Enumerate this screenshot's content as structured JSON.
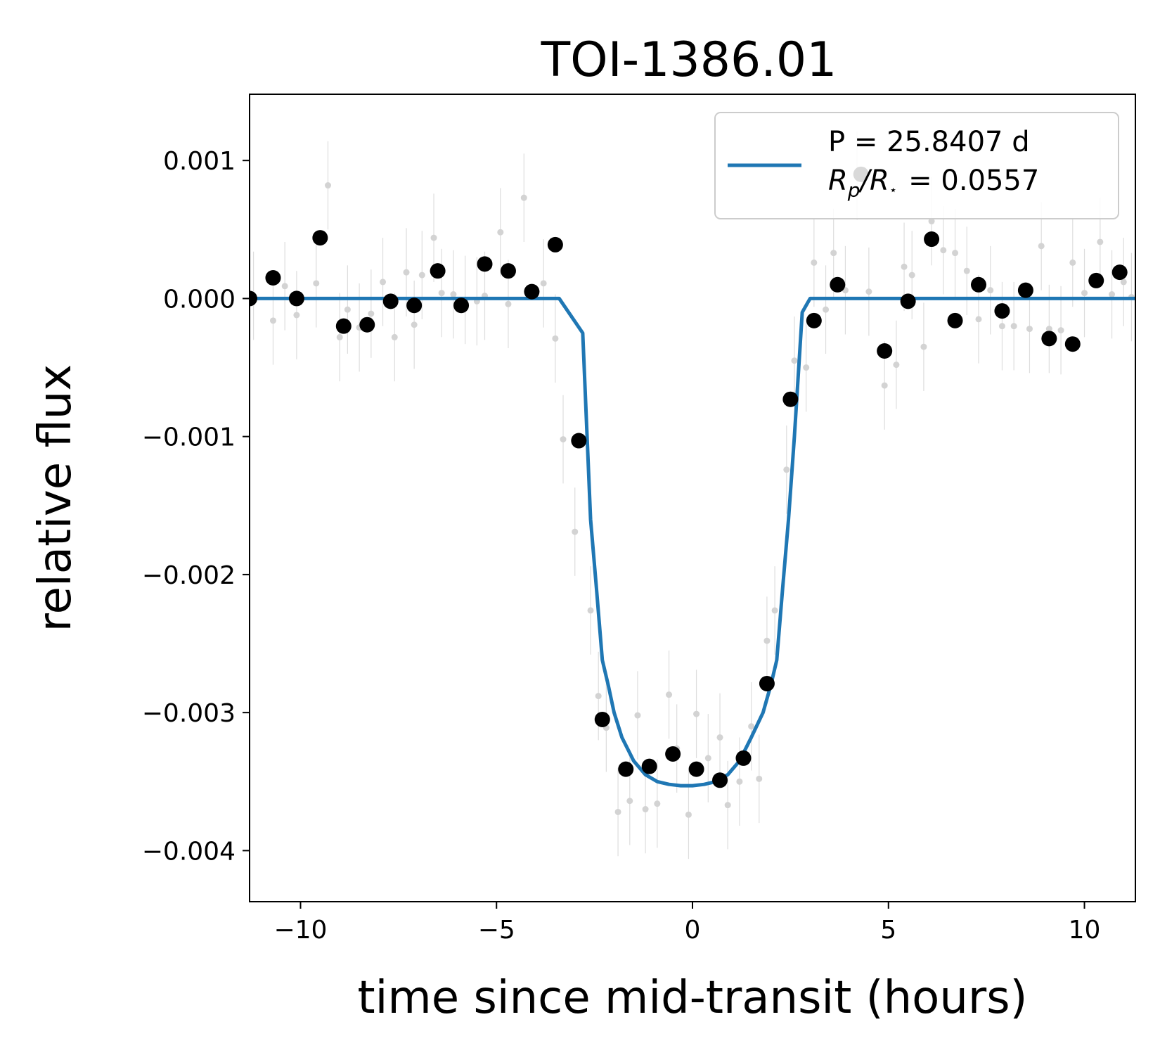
{
  "chart_data": {
    "type": "scatter",
    "title": "TOI-1386.01",
    "xlabel": "time since mid-transit (hours)",
    "ylabel": "relative flux",
    "xlim": [
      -11.3,
      11.3
    ],
    "ylim": [
      -0.00437,
      0.00148
    ],
    "x_ticks": [
      {
        "value": -10,
        "label": "−10"
      },
      {
        "value": -5,
        "label": "−5"
      },
      {
        "value": 0,
        "label": "0"
      },
      {
        "value": 5,
        "label": "5"
      },
      {
        "value": 10,
        "label": "10"
      }
    ],
    "y_ticks": [
      {
        "value": 0.001,
        "label": "0.001"
      },
      {
        "value": 0.0,
        "label": "0.000"
      },
      {
        "value": -0.001,
        "label": "−0.001"
      },
      {
        "value": -0.002,
        "label": "−0.002"
      },
      {
        "value": -0.003,
        "label": "−0.003"
      },
      {
        "value": -0.004,
        "label": "−0.004"
      }
    ],
    "legend": {
      "placement": "top-right",
      "line1": "P = 25.8407 d",
      "line2_symbol": "R",
      "line2_sub": "p",
      "line2_slash": "/R",
      "line2_star": "⋆",
      "line2_value": "= 0.0557"
    },
    "colors": {
      "model": "#1f77b4",
      "binned": "#000000",
      "raw": "#d3d3d3",
      "errorbar": "#dddddd"
    },
    "raw_points": {
      "name": "raw",
      "err": 0.00032,
      "x": [
        -11.2,
        -10.7,
        -10.4,
        -10.1,
        -9.6,
        -9.3,
        -9.0,
        -8.8,
        -8.5,
        -8.2,
        -7.9,
        -7.6,
        -7.3,
        -7.1,
        -6.9,
        -6.6,
        -6.4,
        -6.1,
        -5.8,
        -5.5,
        -5.3,
        -4.9,
        -4.7,
        -4.3,
        -3.8,
        -3.5,
        -3.3,
        -3.0,
        -2.6,
        -2.4,
        -2.2,
        -1.9,
        -1.6,
        -1.4,
        -1.2,
        -0.9,
        -0.6,
        -0.4,
        -0.1,
        0.1,
        0.4,
        0.7,
        0.9,
        1.2,
        1.5,
        1.7,
        1.9,
        2.1,
        2.4,
        2.6,
        2.9,
        3.1,
        3.4,
        3.6,
        3.9,
        4.2,
        4.5,
        4.9,
        5.2,
        5.4,
        5.6,
        5.9,
        6.1,
        6.4,
        6.7,
        7.0,
        7.3,
        7.6,
        7.9,
        8.2,
        8.6,
        8.9,
        9.1,
        9.4,
        9.7,
        10.0,
        10.4,
        10.7,
        11.0,
        11.2
      ],
      "y": [
        2e-05,
        -0.00016,
        9e-05,
        -0.00012,
        0.00011,
        0.00082,
        -0.00028,
        -8e-05,
        -0.00021,
        -0.00011,
        0.00012,
        -0.00028,
        0.00019,
        -0.00019,
        0.00017,
        0.00044,
        4e-05,
        3e-05,
        -1e-05,
        -2e-05,
        2e-05,
        0.00048,
        -4e-05,
        0.00073,
        0.00011,
        -0.00029,
        -0.00102,
        -0.00169,
        -0.00226,
        -0.00288,
        -0.00311,
        -0.00372,
        -0.00364,
        -0.00302,
        -0.0037,
        -0.00366,
        -0.00287,
        -0.00326,
        -0.00374,
        -0.00301,
        -0.00333,
        -0.00318,
        -0.00367,
        -0.0035,
        -0.0031,
        -0.00348,
        -0.00248,
        -0.00226,
        -0.00124,
        -0.00045,
        -0.0005,
        0.00026,
        -8e-05,
        0.00033,
        6e-05,
        0.00089,
        5e-05,
        -0.00063,
        -0.00048,
        0.00023,
        0.00017,
        -0.00035,
        0.00056,
        0.00035,
        0.00033,
        0.0002,
        -0.00015,
        6e-05,
        -0.0002,
        -0.0002,
        -0.00022,
        0.00038,
        -0.00022,
        -0.00023,
        0.00026,
        4e-05,
        0.00041,
        3e-05,
        0.00012,
        1e-05
      ]
    },
    "binned_points": {
      "name": "binned",
      "x": [
        -11.3,
        -10.7,
        -10.1,
        -9.5,
        -8.9,
        -8.3,
        -7.7,
        -7.1,
        -6.5,
        -5.9,
        -5.3,
        -4.7,
        -4.1,
        -3.5,
        -2.9,
        -2.3,
        -1.7,
        -1.1,
        -0.5,
        0.1,
        0.7,
        1.3,
        1.9,
        2.5,
        3.1,
        3.7,
        4.3,
        4.9,
        5.5,
        6.1,
        6.7,
        7.3,
        7.9,
        8.5,
        9.1,
        9.7,
        10.3,
        10.9
      ],
      "y": [
        0.0,
        0.00015,
        0.0,
        0.00044,
        -0.0002,
        -0.00019,
        -2e-05,
        -5e-05,
        0.0002,
        -5e-05,
        0.00025,
        0.0002,
        5e-05,
        0.00039,
        -0.00103,
        -0.00305,
        -0.00341,
        -0.00339,
        -0.0033,
        -0.00341,
        -0.00349,
        -0.00333,
        -0.00279,
        -0.00073,
        -0.00016,
        0.0001,
        0.0009,
        -0.00038,
        -2e-05,
        0.00043,
        -0.00016,
        0.0001,
        -9e-05,
        6e-05,
        -0.00029,
        -0.00033,
        0.00013,
        0.00019
      ]
    },
    "model": {
      "name": "P = 25.8407 d",
      "x": [
        -11.3,
        -3.4,
        -2.8,
        -2.6,
        -2.45,
        -2.3,
        -2.15,
        -2.0,
        -1.8,
        -1.5,
        -1.2,
        -0.9,
        -0.6,
        -0.3,
        0.0,
        0.3,
        0.6,
        0.9,
        1.2,
        1.5,
        1.8,
        2.0,
        2.15,
        2.3,
        2.45,
        2.6,
        2.8,
        3.0,
        11.3
      ],
      "y": [
        0.0,
        0.0,
        -0.00025,
        -0.0016,
        -0.0021,
        -0.00262,
        -0.0028,
        -0.003,
        -0.00318,
        -0.00335,
        -0.00345,
        -0.0035,
        -0.00352,
        -0.00353,
        -0.00353,
        -0.00352,
        -0.0035,
        -0.00345,
        -0.00335,
        -0.00318,
        -0.003,
        -0.0028,
        -0.00262,
        -0.0021,
        -0.0016,
        -0.001,
        -0.0001,
        0.0,
        0.0
      ]
    }
  }
}
